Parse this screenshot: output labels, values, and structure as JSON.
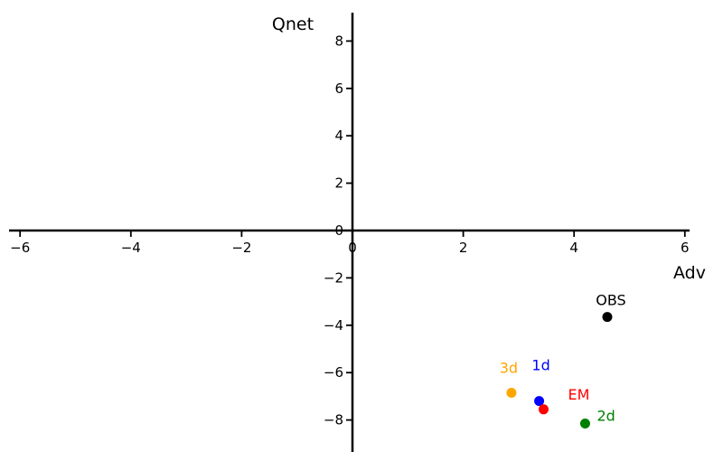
{
  "chart_data": {
    "type": "scatter",
    "title": "",
    "xlabel": "Adv",
    "ylabel": "Qnet",
    "xlim": [
      -6.2,
      6.1
    ],
    "ylim": [
      -9.3,
      9.2
    ],
    "x_ticks": [
      -6,
      -4,
      -2,
      0,
      2,
      4,
      6
    ],
    "y_ticks": [
      -8,
      -6,
      -4,
      -2,
      0,
      2,
      4,
      6,
      8
    ],
    "grid": false,
    "legend": "none",
    "axis_style": "spines-at-zero",
    "points": [
      {
        "label": "OBS",
        "x": 4.6,
        "y": -3.65,
        "color": "#000000",
        "label_anchor": "middle",
        "label_offset": [
          4,
          -13
        ]
      },
      {
        "label": "3d",
        "x": 2.87,
        "y": -6.85,
        "color": "#ffa500",
        "label_anchor": "middle",
        "label_offset": [
          -3,
          -22
        ]
      },
      {
        "label": "1d",
        "x": 3.37,
        "y": -7.2,
        "color": "#0000ff",
        "label_anchor": "middle",
        "label_offset": [
          2,
          -34
        ]
      },
      {
        "label": "EM",
        "x": 3.45,
        "y": -7.55,
        "color": "#ff0000",
        "label_anchor": "start",
        "label_offset": [
          27,
          -11
        ]
      },
      {
        "label": "2d",
        "x": 4.2,
        "y": -8.15,
        "color": "#008000",
        "label_anchor": "start",
        "label_offset": [
          13,
          -3
        ]
      }
    ],
    "colors": {
      "axis": "#000000",
      "background": "#ffffff"
    },
    "marker_radius": 5.5,
    "tick_font_size": 15,
    "axis_title_font_size": 19,
    "point_label_font_size": 16
  }
}
